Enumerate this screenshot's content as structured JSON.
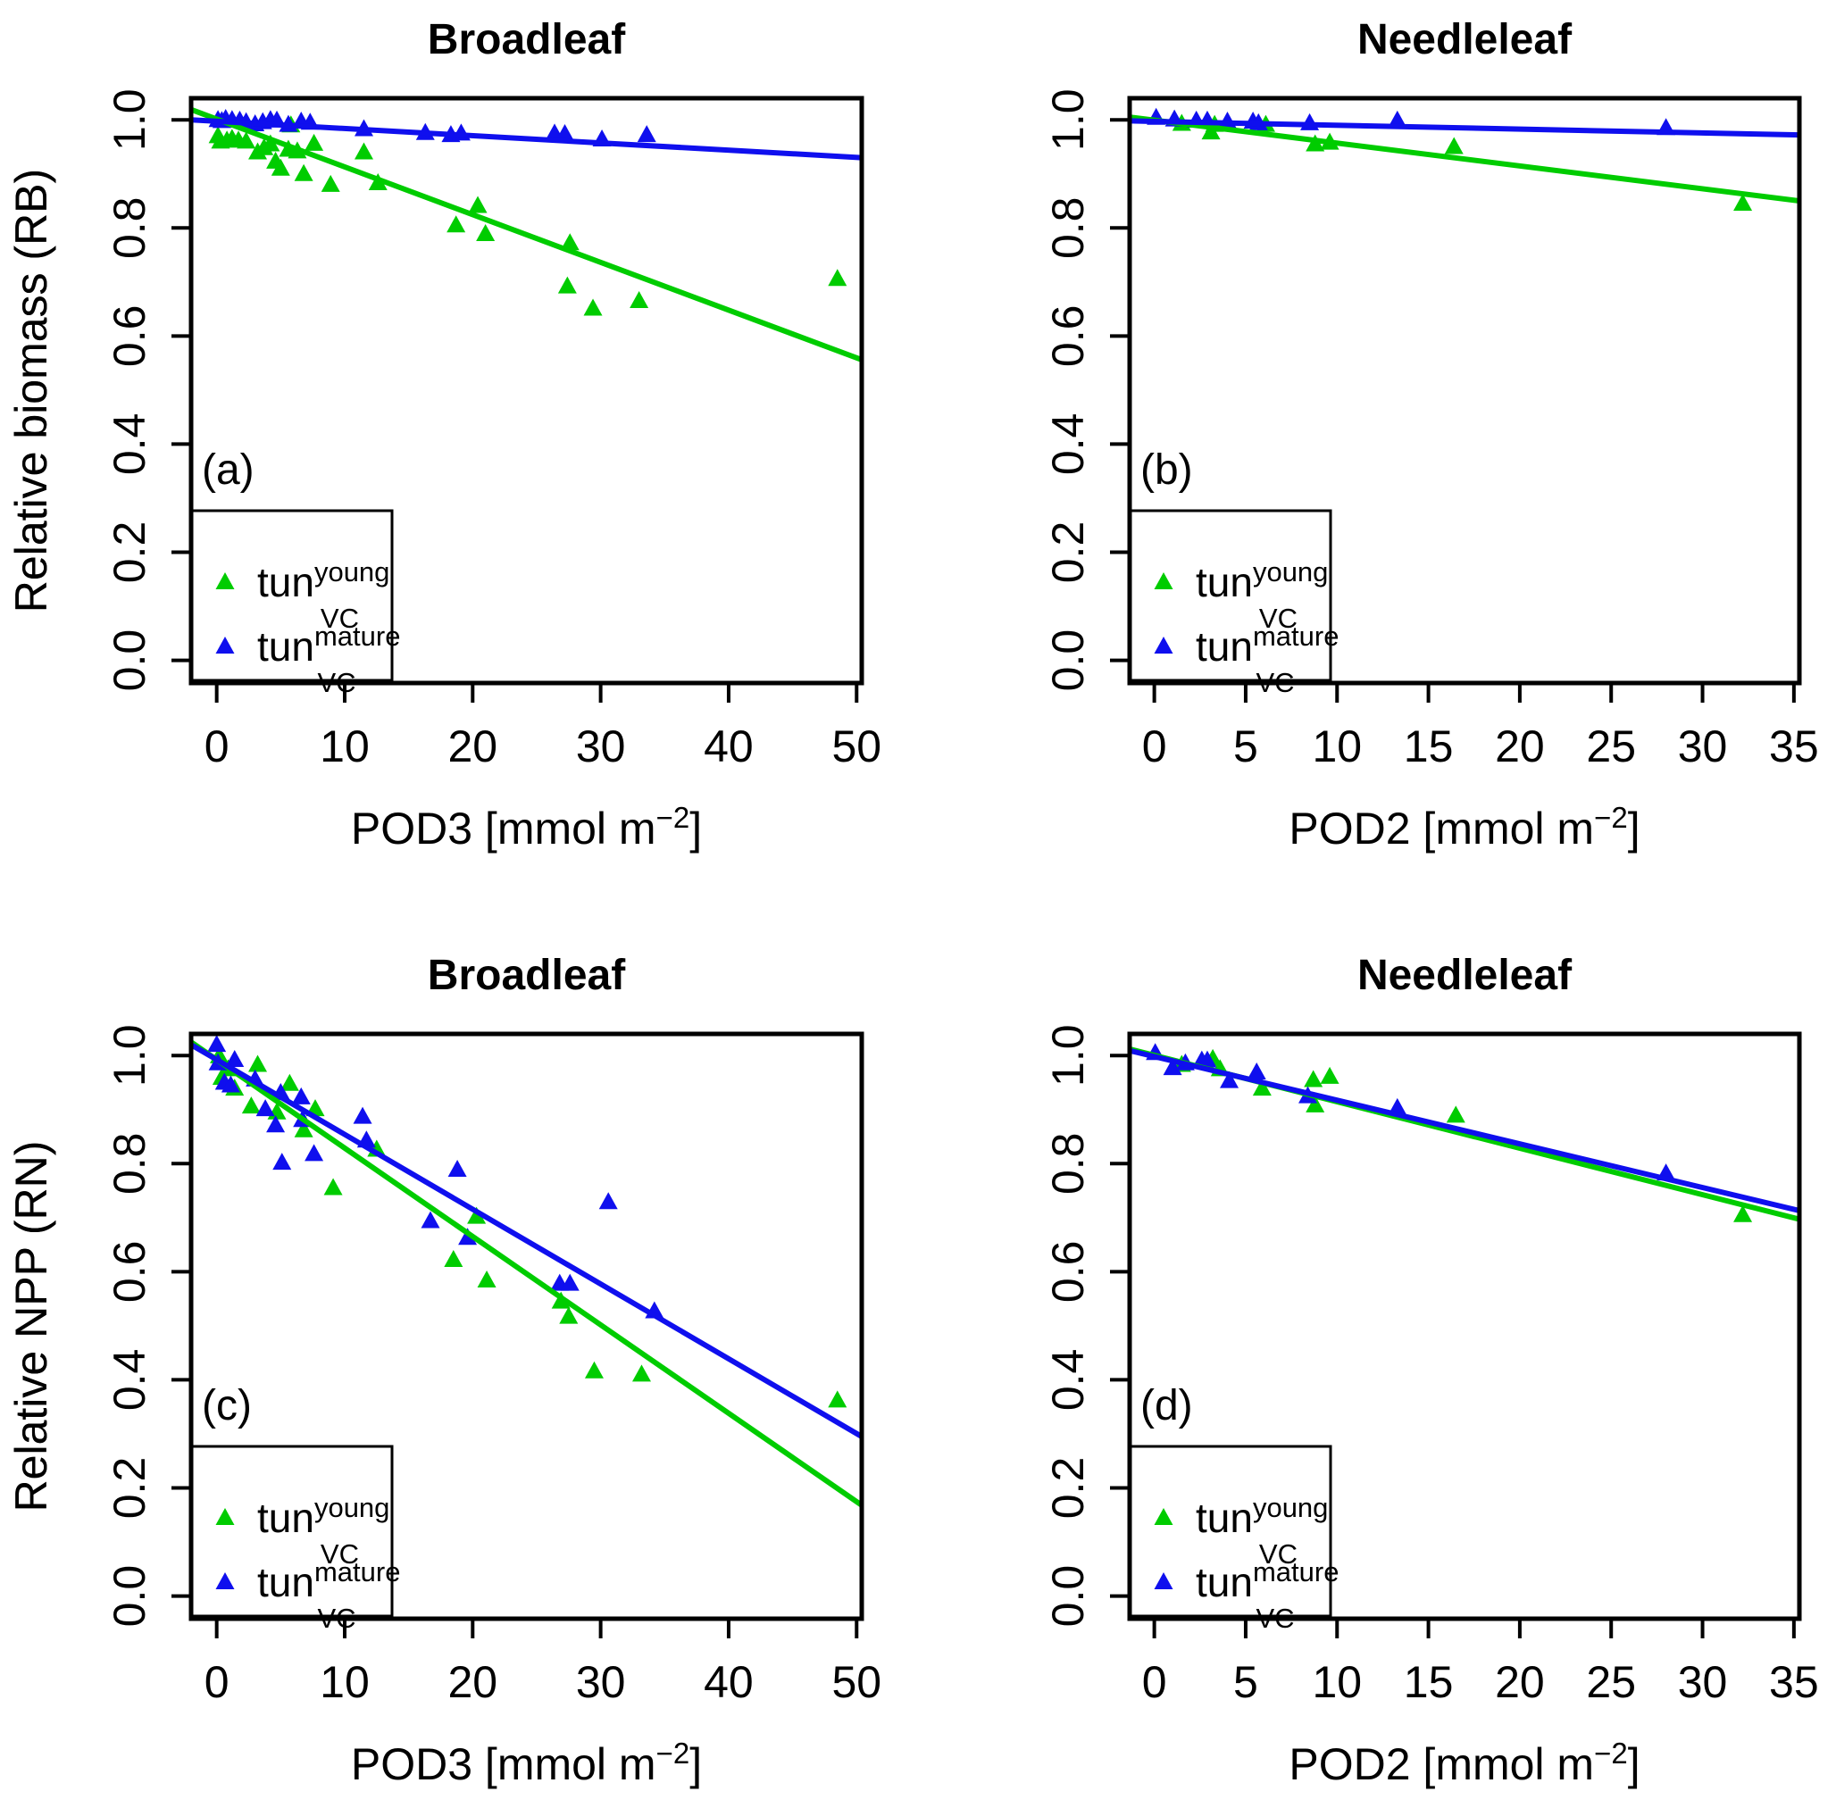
{
  "figure": {
    "background": "#ffffff",
    "colors": {
      "green": "#00CC00",
      "blue": "#0F0FEE",
      "axis": "#000000"
    },
    "legend": {
      "entries": [
        {
          "color": "green",
          "prefix": "tun",
          "sup": "young",
          "sub": "VC"
        },
        {
          "color": "blue",
          "prefix": "tun",
          "sup": "mature",
          "sub": "VC"
        }
      ]
    }
  },
  "chart_data": [
    {
      "id": "a",
      "type": "scatter",
      "title": "Broadleaf",
      "letter": "(a)",
      "xlabel_parts": [
        "POD3 [mmol m",
        "−2",
        "]"
      ],
      "ylabel": "Relative biomass (RB)",
      "xlim": [
        -2.0,
        50.4
      ],
      "ylim": [
        -0.042,
        1.04
      ],
      "xticks": [
        0,
        10,
        20,
        30,
        40,
        50
      ],
      "yticks": [
        "0.0",
        "0.2",
        "0.4",
        "0.6",
        "0.8",
        "1.0"
      ],
      "grid": false,
      "legend_position": "bottomleft",
      "series": [
        {
          "name": "tun_VC_young",
          "color": "green",
          "points": [
            [
              0.1,
              0.97
            ],
            [
              0.3,
              0.96
            ],
            [
              0.8,
              0.962
            ],
            [
              1.2,
              0.965
            ],
            [
              1.7,
              0.962
            ],
            [
              2.3,
              0.96
            ],
            [
              3.2,
              0.94
            ],
            [
              3.7,
              0.948
            ],
            [
              4.2,
              0.955
            ],
            [
              4.6,
              0.923
            ],
            [
              5.0,
              0.91
            ],
            [
              5.6,
              0.945
            ],
            [
              5.8,
              0.99
            ],
            [
              6.3,
              0.942
            ],
            [
              6.8,
              0.9
            ],
            [
              7.6,
              0.956
            ],
            [
              8.9,
              0.88
            ],
            [
              11.5,
              0.94
            ],
            [
              12.6,
              0.883
            ],
            [
              18.7,
              0.805
            ],
            [
              20.4,
              0.841
            ],
            [
              21.0,
              0.789
            ],
            [
              27.4,
              0.692
            ],
            [
              27.6,
              0.772
            ],
            [
              29.4,
              0.651
            ],
            [
              33.0,
              0.665
            ],
            [
              48.5,
              0.706
            ]
          ]
        },
        {
          "name": "tun_VC_mature",
          "color": "blue",
          "points": [
            [
              0.1,
              1.0
            ],
            [
              0.4,
              0.998
            ],
            [
              0.7,
              1.002
            ],
            [
              1.2,
              1.0
            ],
            [
              1.8,
              0.999
            ],
            [
              2.3,
              0.996
            ],
            [
              3.0,
              0.992
            ],
            [
              3.6,
              0.996
            ],
            [
              4.2,
              1.0
            ],
            [
              4.7,
              0.999
            ],
            [
              5.6,
              0.991
            ],
            [
              6.6,
              0.997
            ],
            [
              7.3,
              0.995
            ],
            [
              11.5,
              0.983
            ],
            [
              16.3,
              0.976
            ],
            [
              18.3,
              0.972
            ],
            [
              19.1,
              0.975
            ],
            [
              26.4,
              0.975
            ],
            [
              27.2,
              0.974
            ],
            [
              30.1,
              0.964
            ],
            [
              33.6,
              0.972
            ]
          ]
        }
      ],
      "fit_lines": [
        {
          "color": "green",
          "x1": -2.0,
          "y1": 1.019,
          "x2": 50.4,
          "y2": 0.556
        },
        {
          "color": "blue",
          "x1": -2.0,
          "y1": 1.0,
          "x2": 50.4,
          "y2": 0.93
        }
      ]
    },
    {
      "id": "b",
      "type": "scatter",
      "title": "Needleleaf",
      "letter": "(b)",
      "xlabel_parts": [
        "POD2 [mmol m",
        "−2",
        "]"
      ],
      "ylabel": "Relative biomass (RB)",
      "xlim": [
        -1.35,
        35.3
      ],
      "ylim": [
        -0.042,
        1.04
      ],
      "xticks": [
        0,
        5,
        10,
        15,
        20,
        25,
        30,
        35
      ],
      "yticks": [
        "0.0",
        "0.2",
        "0.4",
        "0.6",
        "0.8",
        "1.0"
      ],
      "grid": false,
      "legend_position": "bottomleft",
      "series": [
        {
          "name": "tun_VC_young",
          "color": "green",
          "points": [
            [
              1.5,
              0.993
            ],
            [
              3.1,
              0.977
            ],
            [
              3.3,
              0.991
            ],
            [
              6.1,
              0.991
            ],
            [
              8.8,
              0.955
            ],
            [
              9.6,
              0.958
            ],
            [
              16.4,
              0.95
            ],
            [
              32.2,
              0.845
            ]
          ]
        },
        {
          "name": "tun_VC_mature",
          "color": "blue",
          "points": [
            [
              0.1,
              1.004
            ],
            [
              1.1,
              1.001
            ],
            [
              2.3,
              0.999
            ],
            [
              2.9,
              0.999
            ],
            [
              4.0,
              0.997
            ],
            [
              5.4,
              0.997
            ],
            [
              5.7,
              0.994
            ],
            [
              8.5,
              0.994
            ],
            [
              13.3,
              0.999
            ],
            [
              28.0,
              0.985
            ]
          ]
        }
      ],
      "fit_lines": [
        {
          "color": "green",
          "x1": -1.35,
          "y1": 1.005,
          "x2": 35.3,
          "y2": 0.85
        },
        {
          "color": "blue",
          "x1": -1.35,
          "y1": 0.998,
          "x2": 35.3,
          "y2": 0.972
        }
      ]
    },
    {
      "id": "c",
      "type": "scatter",
      "title": "Broadleaf",
      "letter": "(c)",
      "xlabel_parts": [
        "POD3 [mmol m",
        "−2",
        "]"
      ],
      "ylabel": "Relative NPP (RN)",
      "xlim": [
        -2.0,
        50.4
      ],
      "ylim": [
        -0.042,
        1.04
      ],
      "xticks": [
        0,
        10,
        20,
        30,
        40,
        50
      ],
      "yticks": [
        "0.0",
        "0.2",
        "0.4",
        "0.6",
        "0.8",
        "1.0"
      ],
      "grid": false,
      "legend_position": "bottomleft",
      "series": [
        {
          "name": "tun_VC_young",
          "color": "green",
          "points": [
            [
              0.2,
              0.999
            ],
            [
              0.4,
              0.959
            ],
            [
              0.9,
              0.975
            ],
            [
              1.4,
              0.939
            ],
            [
              2.7,
              0.906
            ],
            [
              3.2,
              0.983
            ],
            [
              4.7,
              0.895
            ],
            [
              5.7,
              0.948
            ],
            [
              6.8,
              0.862
            ],
            [
              7.7,
              0.901
            ],
            [
              9.1,
              0.755
            ],
            [
              12.5,
              0.826
            ],
            [
              18.5,
              0.622
            ],
            [
              20.3,
              0.702
            ],
            [
              21.1,
              0.584
            ],
            [
              26.9,
              0.545
            ],
            [
              27.5,
              0.517
            ],
            [
              29.5,
              0.416
            ],
            [
              33.2,
              0.41
            ],
            [
              48.5,
              0.362
            ]
          ]
        },
        {
          "name": "tun_VC_mature",
          "color": "blue",
          "points": [
            [
              0.0,
              1.02
            ],
            [
              0.1,
              0.986
            ],
            [
              0.6,
              0.95
            ],
            [
              1.1,
              0.945
            ],
            [
              1.4,
              0.992
            ],
            [
              3.0,
              0.956
            ],
            [
              3.8,
              0.901
            ],
            [
              4.6,
              0.871
            ],
            [
              5.0,
              0.931
            ],
            [
              5.1,
              0.802
            ],
            [
              6.6,
              0.923
            ],
            [
              6.7,
              0.881
            ],
            [
              7.6,
              0.818
            ],
            [
              11.4,
              0.887
            ],
            [
              11.7,
              0.843
            ],
            [
              16.7,
              0.694
            ],
            [
              18.8,
              0.789
            ],
            [
              19.6,
              0.663
            ],
            [
              26.8,
              0.578
            ],
            [
              27.6,
              0.578
            ],
            [
              30.6,
              0.729
            ],
            [
              34.2,
              0.527
            ]
          ]
        }
      ],
      "fit_lines": [
        {
          "color": "green",
          "x1": -2.0,
          "y1": 1.025,
          "x2": 50.4,
          "y2": 0.168
        },
        {
          "color": "blue",
          "x1": -2.0,
          "y1": 1.02,
          "x2": 50.4,
          "y2": 0.295
        }
      ]
    },
    {
      "id": "d",
      "type": "scatter",
      "title": "Needleleaf",
      "letter": "(d)",
      "xlabel_parts": [
        "POD2 [mmol m",
        "−2",
        "]"
      ],
      "ylabel": "Relative NPP (RN)",
      "xlim": [
        -1.35,
        35.3
      ],
      "ylim": [
        -0.042,
        1.04
      ],
      "xticks": [
        0,
        5,
        10,
        15,
        20,
        25,
        30,
        35
      ],
      "yticks": [
        "0.0",
        "0.2",
        "0.4",
        "0.6",
        "0.8",
        "1.0"
      ],
      "grid": false,
      "legend_position": "bottomleft",
      "series": [
        {
          "name": "tun_VC_young",
          "color": "green",
          "points": [
            [
              1.5,
              0.983
            ],
            [
              3.2,
              0.994
            ],
            [
              3.6,
              0.975
            ],
            [
              5.9,
              0.939
            ],
            [
              8.7,
              0.955
            ],
            [
              8.8,
              0.908
            ],
            [
              9.6,
              0.961
            ],
            [
              16.5,
              0.889
            ],
            [
              32.2,
              0.705
            ]
          ]
        },
        {
          "name": "tun_VC_mature",
          "color": "blue",
          "points": [
            [
              0.05,
              1.005
            ],
            [
              1.0,
              0.977
            ],
            [
              1.7,
              0.986
            ],
            [
              2.6,
              0.991
            ],
            [
              2.9,
              0.991
            ],
            [
              4.1,
              0.953
            ],
            [
              5.6,
              0.969
            ],
            [
              8.4,
              0.925
            ],
            [
              13.3,
              0.903
            ],
            [
              28.0,
              0.782
            ]
          ]
        }
      ],
      "fit_lines": [
        {
          "color": "green",
          "x1": -1.35,
          "y1": 1.012,
          "x2": 35.3,
          "y2": 0.697
        },
        {
          "color": "blue",
          "x1": -1.35,
          "y1": 1.009,
          "x2": 35.3,
          "y2": 0.713
        }
      ]
    }
  ]
}
